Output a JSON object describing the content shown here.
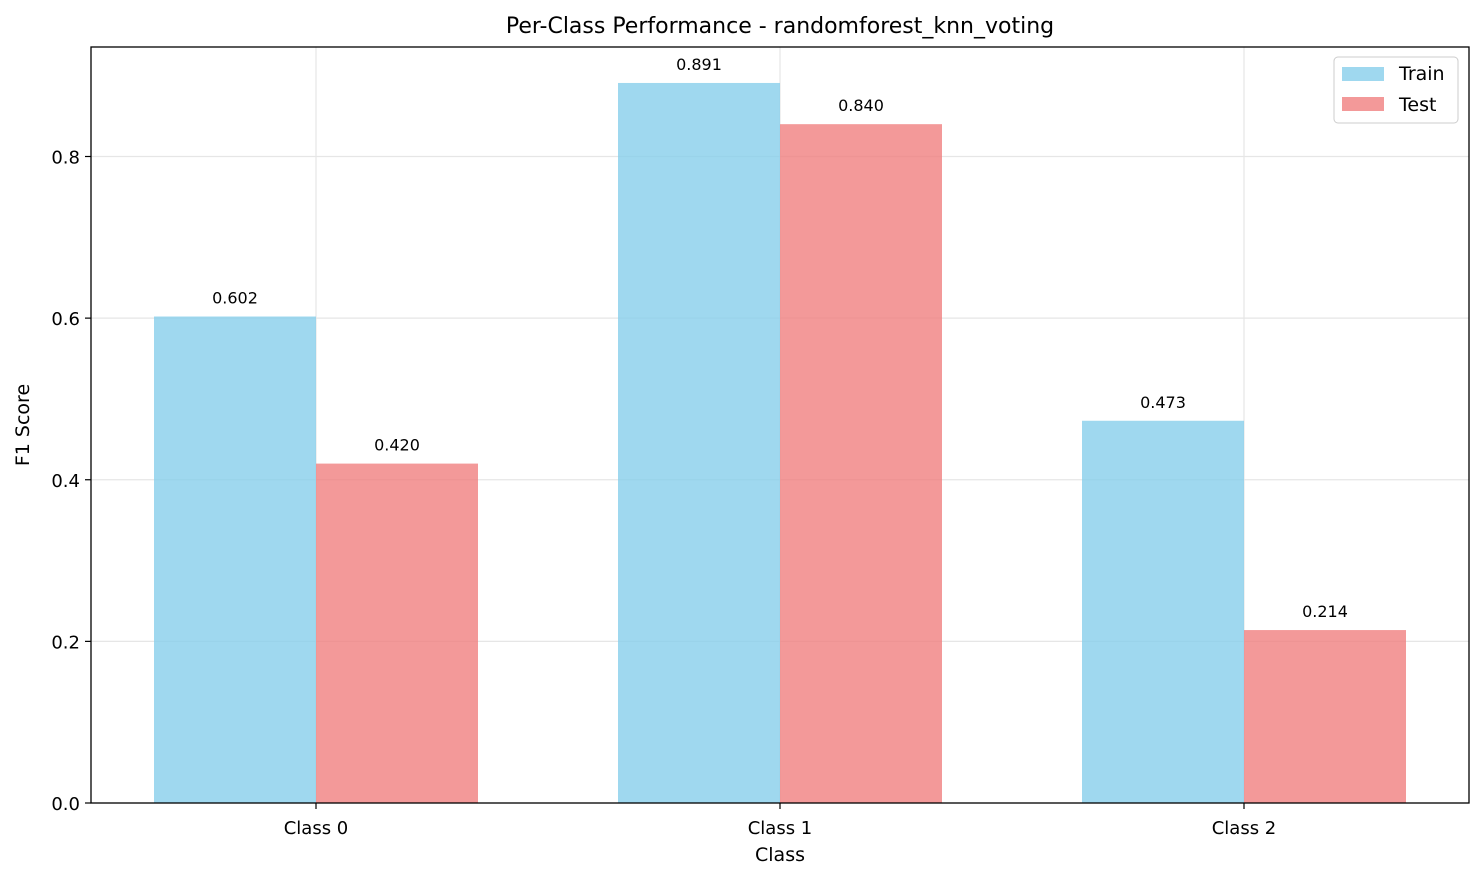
{
  "chart_data": {
    "type": "bar",
    "title": "Per-Class Performance - randomforest_knn_voting",
    "xlabel": "Class",
    "ylabel": "F1 Score",
    "categories": [
      "Class 0",
      "Class 1",
      "Class 2"
    ],
    "series": [
      {
        "name": "Train",
        "values": [
          0.602,
          0.891,
          0.473
        ],
        "labels": [
          "0.602",
          "0.891",
          "0.473"
        ],
        "color": "#87CEEB"
      },
      {
        "name": "Test",
        "values": [
          0.42,
          0.84,
          0.214
        ],
        "labels": [
          "0.420",
          "0.840",
          "0.214"
        ],
        "color": "#F08080"
      }
    ],
    "ylim": [
      0,
      0.9355
    ],
    "yticks": [
      0.0,
      0.2,
      0.4,
      0.6,
      0.8
    ],
    "ytick_labels": [
      "0.0",
      "0.2",
      "0.4",
      "0.6",
      "0.8"
    ],
    "grid": true,
    "legend_position": "top-right"
  }
}
